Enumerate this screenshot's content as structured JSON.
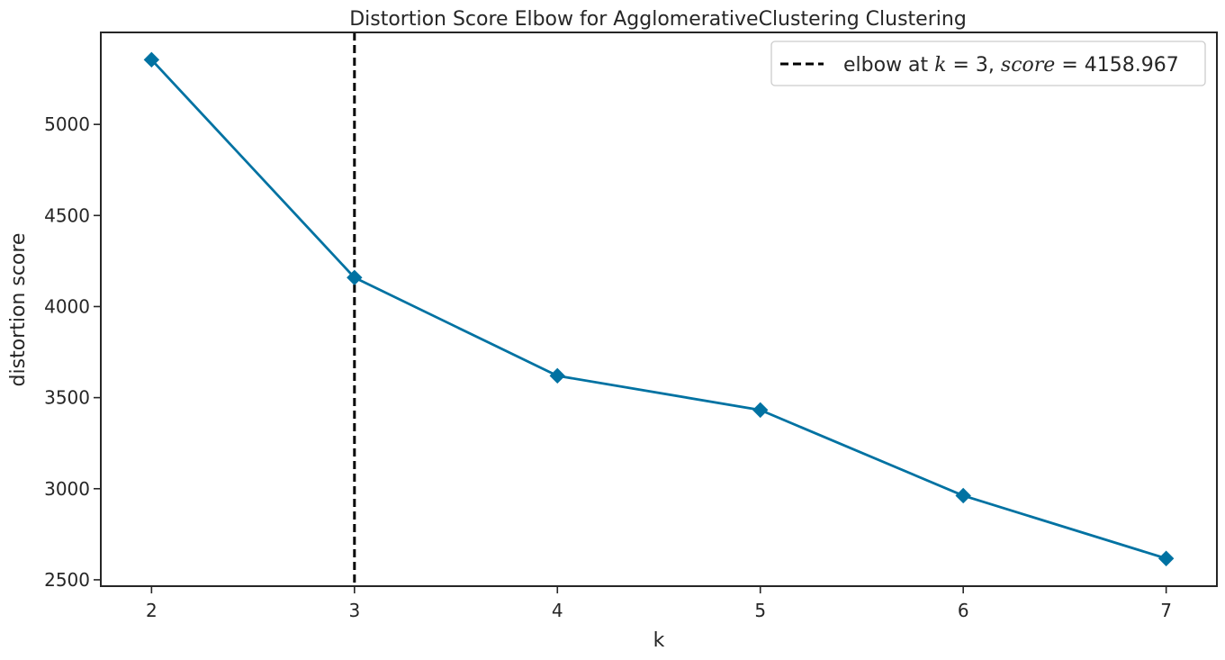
{
  "chart_data": {
    "type": "line",
    "title": "Distortion Score Elbow for AgglomerativeClustering Clustering",
    "xlabel": "k",
    "ylabel": "distortion score",
    "x": [
      2,
      3,
      4,
      5,
      6,
      7
    ],
    "series": [
      {
        "values": [
          5355,
          4159,
          3620,
          3432,
          2962,
          2617
        ],
        "color": "#0072a2",
        "marker": "diamond"
      }
    ],
    "xlim": [
      1.75,
      7.25
    ],
    "ylim": [
      2465,
      5505
    ],
    "xticks": [
      "2",
      "3",
      "4",
      "5",
      "6",
      "7"
    ],
    "yticks": [
      "2500",
      "3000",
      "3500",
      "4000",
      "4500",
      "5000"
    ],
    "elbow": {
      "k": 3,
      "score": 4158.967,
      "color": "#000000",
      "style": "dashed"
    },
    "legend": {
      "position": "top-right",
      "prefix": "elbow at ",
      "k_symbol": "k",
      "k_value": " = 3, ",
      "score_symbol": "score",
      "score_value": " = 4158.967"
    },
    "grid": false
  }
}
